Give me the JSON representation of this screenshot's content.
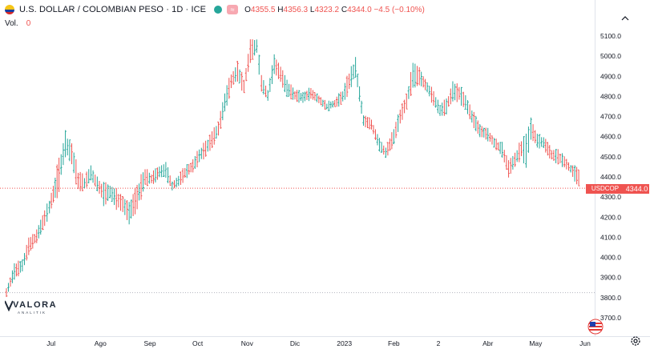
{
  "header": {
    "symbol_title": "U.S. DOLLAR / COLOMBIAN PESO · 1D · ICE",
    "status_badge": "≈",
    "ohlc": {
      "open_label": "O",
      "open": "4355.5",
      "high_label": "H",
      "high": "4356.3",
      "low_label": "L",
      "low": "4323.2",
      "close_label": "C",
      "close": "4344.0",
      "change": "−4.5 (−0.10%)"
    },
    "volume_label": "Vol.",
    "volume_value": "0"
  },
  "price_label": {
    "symbol": "USDCOP",
    "value": "4344.0"
  },
  "logo": {
    "name": "VALORA",
    "sub": "ANALITIK"
  },
  "colors": {
    "up": "#26a69a",
    "down": "#ef5350",
    "axis_text": "#131722",
    "price_line": "#ef5350",
    "dotted_line": "#b2b5be"
  },
  "icons": [
    "flag-icon",
    "status-dot-icon",
    "collapse-icon",
    "us-flag-icon",
    "settings-icon",
    "logo-mark-icon"
  ],
  "chart_data": {
    "type": "ohlc-bars",
    "y_axis": {
      "position": "right",
      "range": [
        3662,
        5152
      ],
      "ticks": [
        5100,
        5000,
        4900,
        4800,
        4700,
        4600,
        4500,
        4400,
        4300,
        4200,
        4100,
        4000,
        3900,
        3800,
        3700
      ],
      "tick_labels": [
        "5100.0",
        "5000.0",
        "4900.0",
        "4800.0",
        "4700.0",
        "4600.0",
        "4500.0",
        "4400.0",
        "4300.0",
        "4200.0",
        "4100.0",
        "4000.0",
        "3900.0",
        "3800.0",
        "3700.0"
      ]
    },
    "x_axis": {
      "range": [
        "2022-06-01",
        "2023-06-05"
      ],
      "tick_dates": [
        "2022-07-01",
        "2022-08-01",
        "2022-09-01",
        "2022-10-01",
        "2022-11-01",
        "2022-12-01",
        "2023-01-01",
        "2023-02-01",
        "2023-03-01",
        "2023-04-01",
        "2023-05-01",
        "2023-06-01"
      ],
      "tick_labels": [
        "Jul",
        "Ago",
        "Sep",
        "Oct",
        "Nov",
        "Dic",
        "2023",
        "Feb",
        "2",
        "Abr",
        "May",
        "Jun"
      ]
    },
    "last_price": 4344.0,
    "reference_level": 3825,
    "grid": false,
    "series": [
      {
        "style": "ohlc",
        "points": [
          [
            "2022-06-03",
            3860,
            3790
          ],
          [
            "2022-06-08",
            3990,
            3870
          ],
          [
            "2022-06-13",
            4020,
            3900
          ],
          [
            "2022-06-17",
            4110,
            4000
          ],
          [
            "2022-06-22",
            4150,
            4060
          ],
          [
            "2022-06-27",
            4260,
            4130
          ],
          [
            "2022-06-30",
            4300,
            4200
          ],
          [
            "2022-07-06",
            4530,
            4290
          ],
          [
            "2022-07-10",
            4660,
            4470
          ],
          [
            "2022-07-14",
            4600,
            4430
          ],
          [
            "2022-07-18",
            4460,
            4300
          ],
          [
            "2022-07-22",
            4420,
            4320
          ],
          [
            "2022-07-26",
            4480,
            4360
          ],
          [
            "2022-07-30",
            4420,
            4310
          ],
          [
            "2022-08-03",
            4400,
            4230
          ],
          [
            "2022-08-07",
            4390,
            4260
          ],
          [
            "2022-08-11",
            4360,
            4220
          ],
          [
            "2022-08-15",
            4330,
            4200
          ],
          [
            "2022-08-19",
            4290,
            4150
          ],
          [
            "2022-08-24",
            4400,
            4200
          ],
          [
            "2022-08-29",
            4460,
            4340
          ],
          [
            "2022-09-02",
            4430,
            4350
          ],
          [
            "2022-09-07",
            4480,
            4370
          ],
          [
            "2022-09-11",
            4490,
            4380
          ],
          [
            "2022-09-15",
            4400,
            4310
          ],
          [
            "2022-09-19",
            4420,
            4340
          ],
          [
            "2022-09-23",
            4470,
            4370
          ],
          [
            "2022-09-28",
            4500,
            4410
          ],
          [
            "2022-10-02",
            4560,
            4450
          ],
          [
            "2022-10-06",
            4600,
            4480
          ],
          [
            "2022-10-10",
            4640,
            4530
          ],
          [
            "2022-10-14",
            4700,
            4580
          ],
          [
            "2022-10-18",
            4850,
            4690
          ],
          [
            "2022-10-22",
            4950,
            4800
          ],
          [
            "2022-10-26",
            5000,
            4850
          ],
          [
            "2022-10-30",
            4900,
            4800
          ],
          [
            "2022-11-03",
            5100,
            4950
          ],
          [
            "2022-11-07",
            5120,
            4980
          ],
          [
            "2022-11-10",
            4950,
            4780
          ],
          [
            "2022-11-14",
            4850,
            4760
          ],
          [
            "2022-11-18",
            5040,
            4880
          ],
          [
            "2022-11-22",
            4970,
            4850
          ],
          [
            "2022-11-26",
            4900,
            4780
          ],
          [
            "2022-12-01",
            4850,
            4760
          ],
          [
            "2022-12-06",
            4830,
            4760
          ],
          [
            "2022-12-11",
            4870,
            4760
          ],
          [
            "2022-12-16",
            4820,
            4750
          ],
          [
            "2022-12-21",
            4780,
            4720
          ],
          [
            "2022-12-26",
            4800,
            4730
          ],
          [
            "2022-12-31",
            4850,
            4750
          ],
          [
            "2023-01-04",
            4950,
            4800
          ],
          [
            "2023-01-08",
            5010,
            4880
          ],
          [
            "2023-01-13",
            4720,
            4640
          ],
          [
            "2023-01-18",
            4700,
            4620
          ],
          [
            "2023-01-23",
            4620,
            4500
          ],
          [
            "2023-01-27",
            4560,
            4480
          ],
          [
            "2023-02-01",
            4660,
            4540
          ],
          [
            "2023-02-05",
            4760,
            4640
          ],
          [
            "2023-02-09",
            4830,
            4720
          ],
          [
            "2023-02-13",
            4990,
            4820
          ],
          [
            "2023-02-17",
            4960,
            4840
          ],
          [
            "2023-02-22",
            4900,
            4790
          ],
          [
            "2023-02-26",
            4840,
            4740
          ],
          [
            "2023-03-02",
            4790,
            4670
          ],
          [
            "2023-03-06",
            4800,
            4700
          ],
          [
            "2023-03-10",
            4890,
            4760
          ],
          [
            "2023-03-14",
            4880,
            4750
          ],
          [
            "2023-03-18",
            4820,
            4720
          ],
          [
            "2023-03-22",
            4760,
            4640
          ],
          [
            "2023-03-27",
            4680,
            4580
          ],
          [
            "2023-04-01",
            4660,
            4560
          ],
          [
            "2023-04-05",
            4600,
            4540
          ],
          [
            "2023-04-10",
            4590,
            4480
          ],
          [
            "2023-04-14",
            4500,
            4380
          ],
          [
            "2023-04-18",
            4550,
            4420
          ],
          [
            "2023-04-22",
            4600,
            4480
          ],
          [
            "2023-04-25",
            4640,
            4420
          ],
          [
            "2023-04-28",
            4720,
            4560
          ],
          [
            "2023-05-02",
            4640,
            4520
          ],
          [
            "2023-05-06",
            4620,
            4520
          ],
          [
            "2023-05-11",
            4560,
            4460
          ],
          [
            "2023-05-15",
            4550,
            4450
          ],
          [
            "2023-05-19",
            4520,
            4430
          ],
          [
            "2023-05-23",
            4480,
            4400
          ],
          [
            "2023-05-28",
            4460,
            4330
          ]
        ]
      }
    ]
  }
}
